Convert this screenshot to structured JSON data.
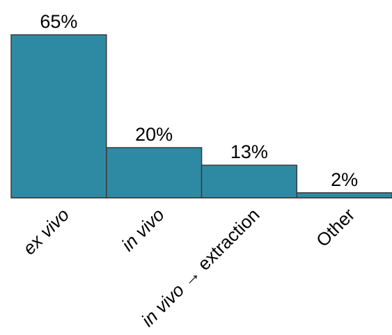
{
  "chart_data": {
    "type": "bar",
    "categories": [
      "ex vivo",
      "in vivo",
      "in vivo → extraction",
      "Other"
    ],
    "values": [
      65,
      20,
      13,
      2
    ],
    "value_labels": [
      "65%",
      "20%",
      "13%",
      "2%"
    ],
    "category_parts": [
      [
        {
          "text": "ex vivo",
          "italic": true
        }
      ],
      [
        {
          "text": "in vivo",
          "italic": true
        }
      ],
      [
        {
          "text": "in vivo",
          "italic": true
        },
        {
          "text": " → extraction",
          "italic": false
        }
      ],
      [
        {
          "text": "Other",
          "italic": false
        }
      ]
    ],
    "title": "",
    "xlabel": "",
    "ylabel": "",
    "ylim": [
      0,
      65
    ],
    "grid": false,
    "legend": "none",
    "bar_color": "#2e8aa3",
    "edge_color": "#3a3a3a"
  }
}
